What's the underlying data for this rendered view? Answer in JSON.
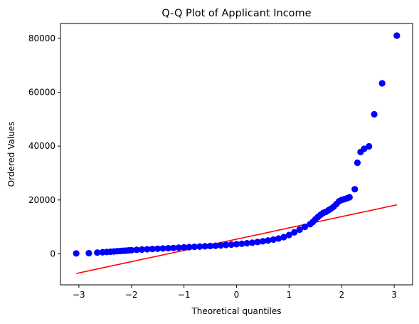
{
  "chart_data": {
    "type": "scatter",
    "title": "Q-Q Plot of Applicant Income",
    "xlabel": "Theoretical quantiles",
    "ylabel": "Ordered Values",
    "xlim": [
      -3.35,
      3.35
    ],
    "ylim": [
      -11500,
      85500
    ],
    "grid": false,
    "x_ticks": [
      -3,
      -2,
      -1,
      0,
      1,
      2,
      3
    ],
    "x_tick_labels": [
      "−3",
      "−2",
      "−1",
      "0",
      "1",
      "2",
      "3"
    ],
    "y_ticks": [
      0,
      20000,
      40000,
      60000,
      80000
    ],
    "y_tick_labels": [
      "0",
      "20000",
      "40000",
      "60000",
      "80000"
    ],
    "point_color": "#0000ff",
    "line_color": "#ff0000",
    "series": [
      {
        "kind": "points",
        "x": [
          -3.05,
          -2.81,
          -2.65,
          -2.55,
          -2.47,
          -2.4,
          -2.33,
          -2.27,
          -2.21,
          -2.15,
          -2.1,
          -2.05,
          -2.0,
          -1.9,
          -1.8,
          -1.7,
          -1.6,
          -1.5,
          -1.4,
          -1.3,
          -1.2,
          -1.1,
          -1.0,
          -0.9,
          -0.8,
          -0.7,
          -0.6,
          -0.5,
          -0.4,
          -0.3,
          -0.2,
          -0.1,
          0.0,
          0.1,
          0.2,
          0.3,
          0.4,
          0.5,
          0.6,
          0.7,
          0.8,
          0.9,
          1.0,
          1.1,
          1.2,
          1.3,
          1.4,
          1.45,
          1.5,
          1.55,
          1.6,
          1.65,
          1.7,
          1.75,
          1.8,
          1.85,
          1.9,
          1.95,
          2.0,
          2.05,
          2.1,
          2.15,
          2.25,
          2.3,
          2.36,
          2.43,
          2.52,
          2.62,
          2.77,
          3.05
        ],
        "y": [
          150,
          250,
          450,
          600,
          700,
          800,
          900,
          1000,
          1050,
          1150,
          1200,
          1300,
          1350,
          1500,
          1600,
          1700,
          1800,
          1900,
          2000,
          2100,
          2200,
          2300,
          2400,
          2500,
          2600,
          2700,
          2800,
          2900,
          3000,
          3150,
          3300,
          3450,
          3600,
          3750,
          3950,
          4150,
          4400,
          4650,
          4950,
          5300,
          5700,
          6200,
          7000,
          8000,
          9000,
          10000,
          11000,
          11800,
          12800,
          13700,
          14500,
          15200,
          15600,
          16200,
          16800,
          17500,
          18500,
          19500,
          20000,
          20300,
          20600,
          21000,
          24000,
          33800,
          37800,
          39000,
          39900,
          51800,
          63300,
          81000
        ]
      },
      {
        "kind": "line",
        "x": [
          -3.05,
          3.05
        ],
        "y": [
          -7300,
          18200
        ]
      }
    ]
  }
}
